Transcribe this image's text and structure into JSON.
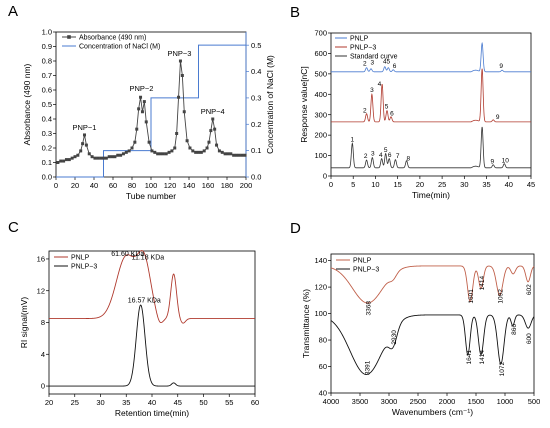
{
  "chart_data": [
    {
      "panel": "A",
      "type": "line",
      "xlabel": "Tube number",
      "ylabel": "Absorbance (490 nm)",
      "y2label": "Concentration of NaCl (M)",
      "xlim": [
        0,
        200
      ],
      "ylim": [
        0,
        1.0
      ],
      "y2lim": [
        0,
        0.55
      ],
      "xticks": [
        "0",
        "20",
        "40",
        "60",
        "80",
        "100",
        "120",
        "140",
        "160",
        "180",
        "200"
      ],
      "yticks": [
        "0.0",
        "0.1",
        "0.2",
        "0.3",
        "0.4",
        "0.5",
        "0.6",
        "0.7",
        "0.8",
        "0.9",
        "1.0"
      ],
      "y2ticks": [
        "0.0",
        "0.1",
        "0.2",
        "0.3",
        "0.4",
        "0.5"
      ],
      "legend": [
        "Absorbance (490 nm)",
        "Concentration of NaCl (M)"
      ],
      "peak_labels": [
        {
          "text": "PNP−1",
          "x": 30,
          "y": 0.29
        },
        {
          "text": "PNP−2",
          "x": 90,
          "y": 0.56
        },
        {
          "text": "PNP−3",
          "x": 130,
          "y": 0.8
        },
        {
          "text": "PNP−4",
          "x": 165,
          "y": 0.4
        }
      ],
      "series": [
        {
          "name": "Absorbance (490 nm)",
          "axis": "left",
          "color": "#444444",
          "x": [
            2,
            5,
            8,
            11,
            14,
            17,
            20,
            23,
            26,
            28,
            30,
            32,
            35,
            38,
            41,
            44,
            47,
            50,
            53,
            56,
            59,
            62,
            65,
            68,
            71,
            74,
            77,
            80,
            83,
            85,
            87,
            89,
            91,
            93,
            95,
            98,
            101,
            104,
            107,
            110,
            113,
            116,
            119,
            122,
            125,
            127,
            129,
            131,
            133,
            135,
            138,
            141,
            144,
            147,
            150,
            153,
            156,
            159,
            161,
            163,
            165,
            167,
            169,
            172,
            175,
            178,
            181,
            184,
            187,
            190,
            193,
            196,
            199
          ],
          "y": [
            0.1,
            0.11,
            0.11,
            0.12,
            0.12,
            0.13,
            0.14,
            0.15,
            0.18,
            0.23,
            0.29,
            0.22,
            0.16,
            0.14,
            0.13,
            0.13,
            0.13,
            0.13,
            0.13,
            0.14,
            0.14,
            0.14,
            0.15,
            0.15,
            0.16,
            0.17,
            0.18,
            0.2,
            0.24,
            0.33,
            0.47,
            0.55,
            0.45,
            0.52,
            0.38,
            0.24,
            0.18,
            0.17,
            0.16,
            0.16,
            0.16,
            0.16,
            0.17,
            0.18,
            0.2,
            0.3,
            0.55,
            0.8,
            0.7,
            0.45,
            0.25,
            0.2,
            0.18,
            0.17,
            0.17,
            0.17,
            0.18,
            0.2,
            0.24,
            0.32,
            0.4,
            0.33,
            0.22,
            0.18,
            0.17,
            0.16,
            0.16,
            0.16,
            0.15,
            0.15,
            0.15,
            0.15,
            0.15
          ]
        },
        {
          "name": "Concentration of NaCl (M)",
          "axis": "right",
          "color": "#4a7bd0",
          "x": [
            0,
            50,
            50,
            100,
            100,
            150,
            150,
            200
          ],
          "y": [
            0,
            0,
            0.1,
            0.1,
            0.3,
            0.3,
            0.5,
            0.5
          ]
        }
      ]
    },
    {
      "panel": "B",
      "type": "line",
      "xlabel": "Time(min)",
      "ylabel": "Response value[nC]",
      "xlim": [
        0,
        45
      ],
      "ylim": [
        0,
        700
      ],
      "xticks": [
        "0",
        "5",
        "10",
        "15",
        "20",
        "25",
        "30",
        "35",
        "40",
        "45"
      ],
      "yticks": [
        "0",
        "100",
        "200",
        "300",
        "400",
        "500",
        "600",
        "700"
      ],
      "legend": [
        "PNLP",
        "PNLP−3",
        "Standard curve"
      ],
      "series": [
        {
          "name": "PNLP",
          "color": "#4a7bd0",
          "baseline": 510,
          "peaks": [
            [
              8,
              20
            ],
            [
              9,
              15
            ],
            [
              12.1,
              25
            ],
            [
              12.9,
              20
            ],
            [
              14,
              10
            ],
            [
              34,
              140
            ],
            [
              38.5,
              8
            ]
          ]
        },
        {
          "name": "PNLP−3",
          "color": "#b03a2e",
          "baseline": 265,
          "peaks": [
            [
              8,
              40
            ],
            [
              9.2,
              135
            ],
            [
              11.5,
              185
            ],
            [
              12.6,
              55
            ],
            [
              13.5,
              25
            ],
            [
              34,
              260
            ],
            [
              36.5,
              10
            ]
          ]
        },
        {
          "name": "Standard curve",
          "color": "#333333",
          "baseline": 40,
          "peaks": [
            [
              4.8,
              120
            ],
            [
              8,
              38
            ],
            [
              9.3,
              50
            ],
            [
              11.4,
              45
            ],
            [
              12.3,
              70
            ],
            [
              13.1,
              45
            ],
            [
              14.5,
              40
            ],
            [
              17,
              35
            ],
            [
              34,
              200
            ],
            [
              36.5,
              15
            ],
            [
              39,
              20
            ]
          ]
        }
      ],
      "peak_numbers": [
        {
          "series": "PNLP",
          "labels": [
            {
              "text": "2",
              "x": 7.6,
              "y": 540
            },
            {
              "text": "3",
              "x": 9.3,
              "y": 545
            },
            {
              "text": "45",
              "x": 12.5,
              "y": 550
            },
            {
              "text": "6",
              "x": 14.3,
              "y": 528
            },
            {
              "text": "9",
              "x": 38.3,
              "y": 528
            }
          ]
        },
        {
          "series": "PNLP−3",
          "labels": [
            {
              "text": "3",
              "x": 9.2,
              "y": 410
            },
            {
              "text": "2",
              "x": 7.6,
              "y": 312
            },
            {
              "text": "4",
              "x": 10.9,
              "y": 440
            },
            {
              "text": "5",
              "x": 12.5,
              "y": 330
            },
            {
              "text": "6",
              "x": 13.7,
              "y": 295
            },
            {
              "text": "9",
              "x": 37.5,
              "y": 280
            }
          ]
        },
        {
          "series": "Standard curve",
          "labels": [
            {
              "text": "1",
              "x": 4.8,
              "y": 170
            },
            {
              "text": "2",
              "x": 7.8,
              "y": 88
            },
            {
              "text": "3",
              "x": 9.4,
              "y": 100
            },
            {
              "text": "4",
              "x": 11.2,
              "y": 92
            },
            {
              "text": "5",
              "x": 12.3,
              "y": 118
            },
            {
              "text": "6",
              "x": 13.2,
              "y": 93
            },
            {
              "text": "7",
              "x": 15,
              "y": 88
            },
            {
              "text": "8",
              "x": 17.4,
              "y": 75
            },
            {
              "text": "9",
              "x": 36.3,
              "y": 60
            },
            {
              "text": "10",
              "x": 39.2,
              "y": 65
            }
          ]
        }
      ]
    },
    {
      "panel": "C",
      "type": "line",
      "xlabel": "Retention time(min)",
      "ylabel": "RI signal(mV)",
      "xlim": [
        20,
        60
      ],
      "ylim": [
        -1,
        17
      ],
      "xticks": [
        "20",
        "25",
        "30",
        "35",
        "40",
        "45",
        "50",
        "55",
        "60"
      ],
      "yticks": [
        "0",
        "4",
        "8",
        "12",
        "16"
      ],
      "legend": [
        "PNLP",
        "PNLP−3"
      ],
      "annotations": [
        {
          "text": "61.60 KDa",
          "x": 35.3,
          "y": 16.4
        },
        {
          "text": "11.18 KDa",
          "x": 39.2,
          "y": 15.9
        },
        {
          "text": "16.57 KDa",
          "x": 38.5,
          "y": 10.5
        }
      ],
      "series": [
        {
          "name": "PNLP",
          "color": "#b03a2e",
          "baseline": 8.5,
          "peaks": [
            [
              35,
              7.8,
              1.9
            ],
            [
              38.5,
              6.8,
              1.3
            ],
            [
              41.5,
              -0.9,
              0.6
            ],
            [
              44.2,
              5.6,
              0.55
            ],
            [
              46,
              -0.6,
              0.5
            ]
          ]
        },
        {
          "name": "PNLP−3",
          "color": "#111111",
          "baseline": 0,
          "peaks": [
            [
              37.8,
              10.2,
              0.85
            ],
            [
              44.2,
              0.4,
              0.4
            ]
          ]
        }
      ]
    },
    {
      "panel": "D",
      "type": "line",
      "xlabel": "Wavenumbers (cm⁻¹)",
      "ylabel": "Transmittance (%)",
      "xlim": [
        4000,
        500
      ],
      "ylim": [
        40,
        145
      ],
      "xticks": [
        "4000",
        "3500",
        "3000",
        "2500",
        "2000",
        "1500",
        "1000",
        "500"
      ],
      "yticks": [
        "40",
        "60",
        "80",
        "100",
        "120",
        "140"
      ],
      "legend": [
        "PNLP",
        "PNLP−3"
      ],
      "band_labels": [
        {
          "series": "PNLP",
          "labels": [
            {
              "text": "3368",
              "x": 3368,
              "y": 104
            },
            {
              "text": "1601",
              "x": 1601,
              "y": 113
            },
            {
              "text": "1414",
              "x": 1414,
              "y": 123
            },
            {
              "text": "1092",
              "x": 1092,
              "y": 113
            },
            {
              "text": "602",
              "x": 602,
              "y": 118
            }
          ]
        },
        {
          "series": "PNLP−3",
          "labels": [
            {
              "text": "3391",
              "x": 3391,
              "y": 59
            },
            {
              "text": "2930",
              "x": 2930,
              "y": 82
            },
            {
              "text": "1641",
              "x": 1641,
              "y": 67
            },
            {
              "text": "1414",
              "x": 1414,
              "y": 67
            },
            {
              "text": "1072",
              "x": 1072,
              "y": 58
            },
            {
              "text": "866",
              "x": 866,
              "y": 88
            },
            {
              "text": "600",
              "x": 600,
              "y": 81
            }
          ]
        }
      ],
      "series": [
        {
          "name": "PNLP",
          "color": "#c0604a",
          "baseline": 136,
          "bands": [
            [
              3368,
              28,
              260
            ],
            [
              2930,
              4,
              60
            ],
            [
              1601,
              27,
              45
            ],
            [
              1414,
              17,
              40
            ],
            [
              1092,
              22,
              55
            ],
            [
              860,
              6,
              40
            ],
            [
              602,
              12,
              40
            ]
          ]
        },
        {
          "name": "PNLP−3",
          "color": "#111111",
          "baseline": 99,
          "bands": [
            [
              3391,
              45,
              280
            ],
            [
              2930,
              13,
              70
            ],
            [
              1641,
              30,
              40
            ],
            [
              1414,
              30,
              45
            ],
            [
              1072,
              37,
              55
            ],
            [
              866,
              8,
              30
            ],
            [
              600,
              10,
              50
            ]
          ]
        }
      ]
    }
  ],
  "panels": [
    {
      "key": "A",
      "letter": "A"
    },
    {
      "key": "B",
      "letter": "B"
    },
    {
      "key": "C",
      "letter": "C"
    },
    {
      "key": "D",
      "letter": "D"
    }
  ]
}
